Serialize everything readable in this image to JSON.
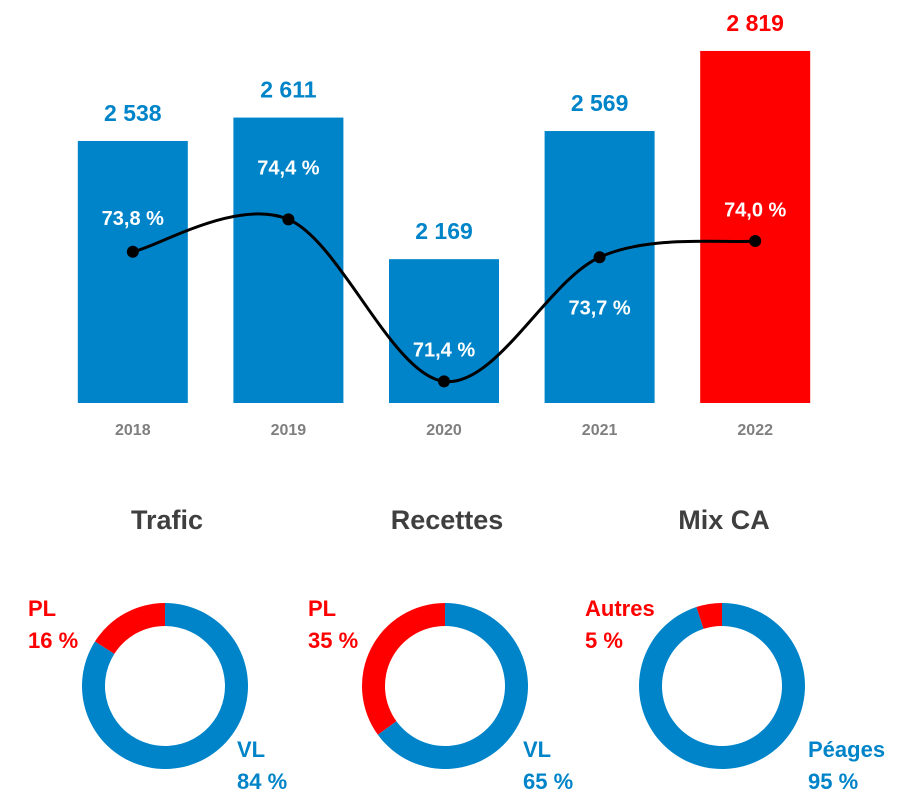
{
  "chart_data": [
    {
      "type": "bar",
      "categories": [
        "2018",
        "2019",
        "2020",
        "2021",
        "2022"
      ],
      "ylim": [
        1720,
        2900
      ],
      "y2lim": [
        71,
        78
      ],
      "series": [
        {
          "values": [
            2538,
            2611,
            2169,
            2569,
            2819
          ],
          "value_labels": [
            "2 538",
            "2 611",
            "2 169",
            "2 569",
            "2 819"
          ],
          "colors": [
            "#0084c9",
            "#0084c9",
            "#0084c9",
            "#0084c9",
            "#ff0000"
          ]
        },
        {
          "type": "line",
          "axis": "y2",
          "color": "#000000",
          "values": [
            73.8,
            74.4,
            71.4,
            73.7,
            74.0
          ],
          "value_labels": [
            "73,8 %",
            "74,4 %",
            "71,4 %",
            "73,7 %",
            "74,0 %"
          ]
        }
      ]
    },
    {
      "type": "donut",
      "title": "Trafic",
      "categories": [
        "PL",
        "VL"
      ],
      "values": [
        16,
        84
      ],
      "value_labels": [
        "16 %",
        "84 %"
      ],
      "colors": [
        "#ff0000",
        "#0084c9"
      ]
    },
    {
      "type": "donut",
      "title": "Recettes",
      "categories": [
        "PL",
        "VL"
      ],
      "values": [
        35,
        65
      ],
      "value_labels": [
        "35 %",
        "65 %"
      ],
      "colors": [
        "#ff0000",
        "#0084c9"
      ]
    },
    {
      "type": "donut",
      "title": "Mix CA",
      "categories": [
        "Autres",
        "Péages"
      ],
      "values": [
        5,
        95
      ],
      "value_labels": [
        "5 %",
        "95 %"
      ],
      "colors": [
        "#ff0000",
        "#0084c9"
      ]
    }
  ]
}
